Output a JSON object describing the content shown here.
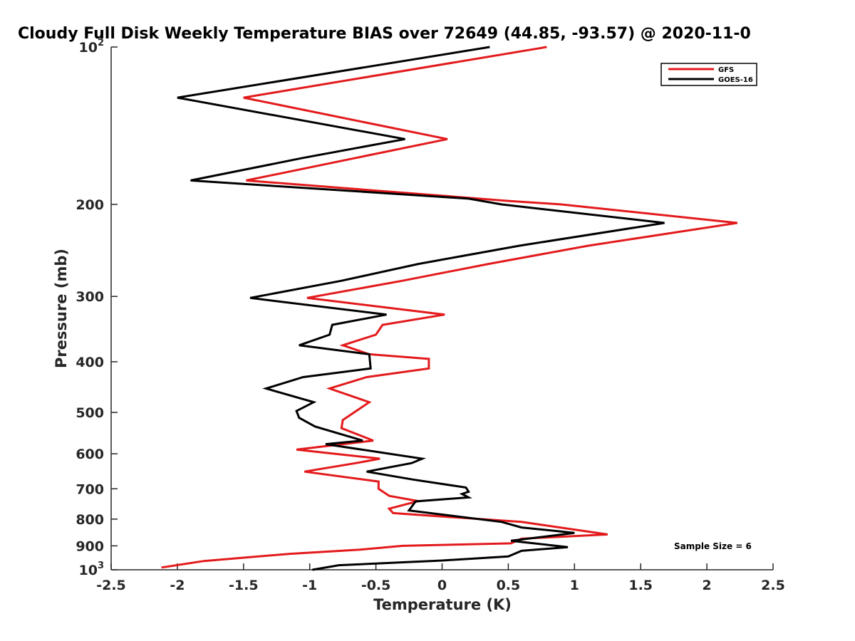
{
  "chart_data": {
    "type": "line",
    "title": "Cloudy Full Disk Weekly Temperature BIAS over 72649 (44.85, -93.57) @ 2020-11-0",
    "xlabel": "Temperature (K)",
    "ylabel": "Pressure (mb)",
    "xlim": [
      -2.5,
      2.5
    ],
    "ylim": [
      100,
      1000
    ],
    "yscale": "log",
    "y_reversed": true,
    "x_ticks": [
      -2.5,
      -2,
      -1.5,
      -1,
      -0.5,
      0,
      0.5,
      1,
      1.5,
      2,
      2.5
    ],
    "x_tick_labels": [
      "-2.5",
      "-2",
      "-1.5",
      "-1",
      "-0.5",
      "0",
      "0.5",
      "1",
      "1.5",
      "2",
      "2.5"
    ],
    "y_ticks": [
      100,
      200,
      300,
      400,
      500,
      600,
      700,
      800,
      900,
      1000
    ],
    "y_tick_labels": [
      {
        "base": "10",
        "exp": "2"
      },
      {
        "base": "200",
        "exp": ""
      },
      {
        "base": "300",
        "exp": ""
      },
      {
        "base": "400",
        "exp": ""
      },
      {
        "base": "500",
        "exp": ""
      },
      {
        "base": "600",
        "exp": ""
      },
      {
        "base": "700",
        "exp": ""
      },
      {
        "base": "800",
        "exp": ""
      },
      {
        "base": "900",
        "exp": ""
      },
      {
        "base": "10",
        "exp": "3"
      }
    ],
    "grid": false,
    "legend_position": "top-right",
    "annotation": "Sample Size = 6",
    "series": [
      {
        "name": "GFS",
        "color": "#e31a1c",
        "points": [
          [
            0.79,
            100
          ],
          [
            -1.5,
            125
          ],
          [
            0.04,
            150
          ],
          [
            -1.48,
            180
          ],
          [
            0.5,
            197
          ],
          [
            0.9,
            200
          ],
          [
            2.23,
            217
          ],
          [
            1.1,
            240
          ],
          [
            0.35,
            260
          ],
          [
            -0.3,
            280
          ],
          [
            -1.02,
            302
          ],
          [
            0.02,
            325
          ],
          [
            -0.45,
            340
          ],
          [
            -0.5,
            355
          ],
          [
            -0.75,
            372
          ],
          [
            -0.55,
            387
          ],
          [
            -0.1,
            395
          ],
          [
            -0.1,
            412
          ],
          [
            -0.57,
            428
          ],
          [
            -0.85,
            450
          ],
          [
            -0.55,
            478
          ],
          [
            -0.75,
            517
          ],
          [
            -0.76,
            536
          ],
          [
            -0.52,
            566
          ],
          [
            -1.1,
            589
          ],
          [
            -0.47,
            613
          ],
          [
            -0.65,
            625
          ],
          [
            -1.04,
            649
          ],
          [
            -0.48,
            678
          ],
          [
            -0.48,
            700
          ],
          [
            -0.4,
            722
          ],
          [
            -0.18,
            739
          ],
          [
            -0.4,
            764
          ],
          [
            -0.37,
            779
          ],
          [
            0.6,
            810
          ],
          [
            1.25,
            856
          ],
          [
            0.6,
            872
          ],
          [
            0.52,
            890
          ],
          [
            -0.3,
            900
          ],
          [
            -0.62,
            915
          ],
          [
            -1.15,
            932
          ],
          [
            -1.8,
            962
          ],
          [
            -2.12,
            990
          ]
        ]
      },
      {
        "name": "GOES-16",
        "color": "#000000",
        "points": [
          [
            0.36,
            100
          ],
          [
            -2.0,
            125
          ],
          [
            -0.28,
            150
          ],
          [
            -1.05,
            163
          ],
          [
            -1.9,
            180
          ],
          [
            0.2,
            195
          ],
          [
            0.45,
            200
          ],
          [
            1.68,
            217
          ],
          [
            0.58,
            240
          ],
          [
            -0.18,
            260
          ],
          [
            -0.76,
            280
          ],
          [
            -1.45,
            302
          ],
          [
            -0.42,
            325
          ],
          [
            -0.83,
            340
          ],
          [
            -0.85,
            355
          ],
          [
            -1.08,
            372
          ],
          [
            -0.55,
            387
          ],
          [
            -0.54,
            412
          ],
          [
            -1.05,
            428
          ],
          [
            -1.33,
            450
          ],
          [
            -0.97,
            478
          ],
          [
            -1.1,
            497
          ],
          [
            -1.08,
            512
          ],
          [
            -0.96,
            532
          ],
          [
            -0.6,
            566
          ],
          [
            -0.88,
            575
          ],
          [
            -0.15,
            613
          ],
          [
            -0.23,
            625
          ],
          [
            -0.57,
            649
          ],
          [
            -0.22,
            672
          ],
          [
            0.18,
            696
          ],
          [
            0.2,
            709
          ],
          [
            0.15,
            716
          ],
          [
            0.2,
            727
          ],
          [
            -0.2,
            740
          ],
          [
            -0.25,
            770
          ],
          [
            0.45,
            810
          ],
          [
            0.6,
            830
          ],
          [
            1.0,
            850
          ],
          [
            0.52,
            880
          ],
          [
            0.95,
            905
          ],
          [
            0.6,
            920
          ],
          [
            0.5,
            943
          ],
          [
            0.0,
            960
          ],
          [
            -0.78,
            980
          ],
          [
            -0.98,
            1000
          ]
        ]
      }
    ]
  }
}
